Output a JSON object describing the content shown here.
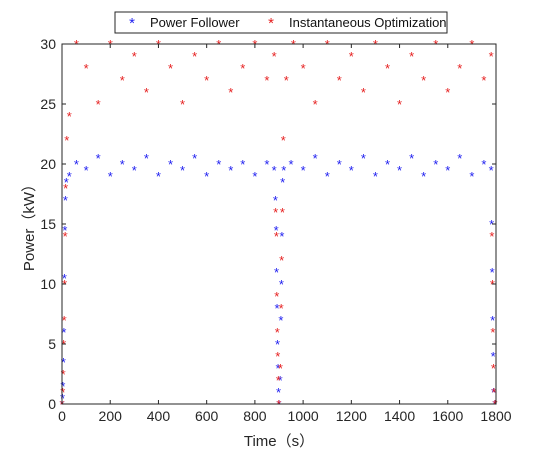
{
  "colors": {
    "power_follower": "#1c1cf0",
    "instantaneous_optimization": "#e61e1e",
    "axis": "#262626"
  },
  "chart_data": {
    "type": "scatter",
    "xlabel": "Time（s）",
    "ylabel": "Power（kW）",
    "xlim": [
      0,
      1800
    ],
    "ylim": [
      0,
      30
    ],
    "xticks": [
      0,
      200,
      400,
      600,
      800,
      1000,
      1200,
      1400,
      1600,
      1800
    ],
    "yticks": [
      0,
      5,
      10,
      15,
      20,
      25,
      30
    ],
    "grid": false,
    "legend_position": "top",
    "marker": "*",
    "series": [
      {
        "name": "Power Follower",
        "color": "#1c1cf0",
        "points": [
          [
            0,
            0
          ],
          [
            2,
            0.5
          ],
          [
            4,
            1.5
          ],
          [
            6,
            3.5
          ],
          [
            8,
            6
          ],
          [
            10,
            10.5
          ],
          [
            12,
            14.5
          ],
          [
            14,
            17
          ],
          [
            18,
            18.5
          ],
          [
            30,
            19
          ],
          [
            60,
            20
          ],
          [
            100,
            19.5
          ],
          [
            150,
            20.5
          ],
          [
            200,
            19
          ],
          [
            250,
            20
          ],
          [
            300,
            19.5
          ],
          [
            350,
            20.5
          ],
          [
            400,
            19
          ],
          [
            450,
            20
          ],
          [
            500,
            19.5
          ],
          [
            550,
            20.5
          ],
          [
            600,
            19
          ],
          [
            650,
            20
          ],
          [
            700,
            19.5
          ],
          [
            750,
            20
          ],
          [
            800,
            19
          ],
          [
            850,
            20
          ],
          [
            880,
            19.5
          ],
          [
            885,
            17
          ],
          [
            888,
            14.5
          ],
          [
            890,
            11
          ],
          [
            892,
            8
          ],
          [
            894,
            5
          ],
          [
            896,
            3
          ],
          [
            898,
            1
          ],
          [
            900,
            0
          ],
          [
            905,
            2
          ],
          [
            908,
            7
          ],
          [
            910,
            10
          ],
          [
            912,
            14
          ],
          [
            915,
            18.5
          ],
          [
            920,
            19.5
          ],
          [
            950,
            20
          ],
          [
            1000,
            19.5
          ],
          [
            1050,
            20.5
          ],
          [
            1100,
            19
          ],
          [
            1150,
            20
          ],
          [
            1200,
            19.5
          ],
          [
            1250,
            20.5
          ],
          [
            1300,
            19
          ],
          [
            1350,
            20
          ],
          [
            1400,
            19.5
          ],
          [
            1450,
            20.5
          ],
          [
            1500,
            19
          ],
          [
            1550,
            20
          ],
          [
            1600,
            19.5
          ],
          [
            1650,
            20.5
          ],
          [
            1700,
            19
          ],
          [
            1750,
            20
          ],
          [
            1780,
            19.5
          ],
          [
            1782,
            15
          ],
          [
            1784,
            11
          ],
          [
            1786,
            7
          ],
          [
            1788,
            4
          ],
          [
            1790,
            1
          ],
          [
            1795,
            0
          ]
        ]
      },
      {
        "name": "Instantaneous Optimization",
        "color": "#e61e1e",
        "points": [
          [
            0,
            0
          ],
          [
            3,
            1
          ],
          [
            5,
            2.5
          ],
          [
            7,
            5
          ],
          [
            9,
            7
          ],
          [
            11,
            10
          ],
          [
            13,
            14
          ],
          [
            15,
            18
          ],
          [
            20,
            22
          ],
          [
            30,
            24
          ],
          [
            60,
            30
          ],
          [
            100,
            28
          ],
          [
            150,
            25
          ],
          [
            200,
            30
          ],
          [
            250,
            27
          ],
          [
            300,
            29
          ],
          [
            350,
            26
          ],
          [
            400,
            30
          ],
          [
            450,
            28
          ],
          [
            500,
            25
          ],
          [
            550,
            29
          ],
          [
            600,
            27
          ],
          [
            650,
            30
          ],
          [
            700,
            26
          ],
          [
            750,
            28
          ],
          [
            800,
            30
          ],
          [
            850,
            27
          ],
          [
            880,
            29
          ],
          [
            886,
            16
          ],
          [
            889,
            14
          ],
          [
            891,
            9
          ],
          [
            893,
            6
          ],
          [
            895,
            4
          ],
          [
            897,
            2
          ],
          [
            899,
            0
          ],
          [
            906,
            3
          ],
          [
            909,
            8
          ],
          [
            911,
            12
          ],
          [
            914,
            16
          ],
          [
            918,
            22
          ],
          [
            930,
            27
          ],
          [
            960,
            30
          ],
          [
            1000,
            28
          ],
          [
            1050,
            25
          ],
          [
            1100,
            30
          ],
          [
            1150,
            27
          ],
          [
            1200,
            29
          ],
          [
            1250,
            26
          ],
          [
            1300,
            30
          ],
          [
            1350,
            28
          ],
          [
            1400,
            25
          ],
          [
            1450,
            29
          ],
          [
            1500,
            27
          ],
          [
            1550,
            30
          ],
          [
            1600,
            26
          ],
          [
            1650,
            28
          ],
          [
            1700,
            30
          ],
          [
            1750,
            27
          ],
          [
            1780,
            29
          ],
          [
            1783,
            14
          ],
          [
            1785,
            10
          ],
          [
            1787,
            6
          ],
          [
            1789,
            3
          ],
          [
            1792,
            1
          ],
          [
            1796,
            0
          ]
        ]
      }
    ]
  }
}
